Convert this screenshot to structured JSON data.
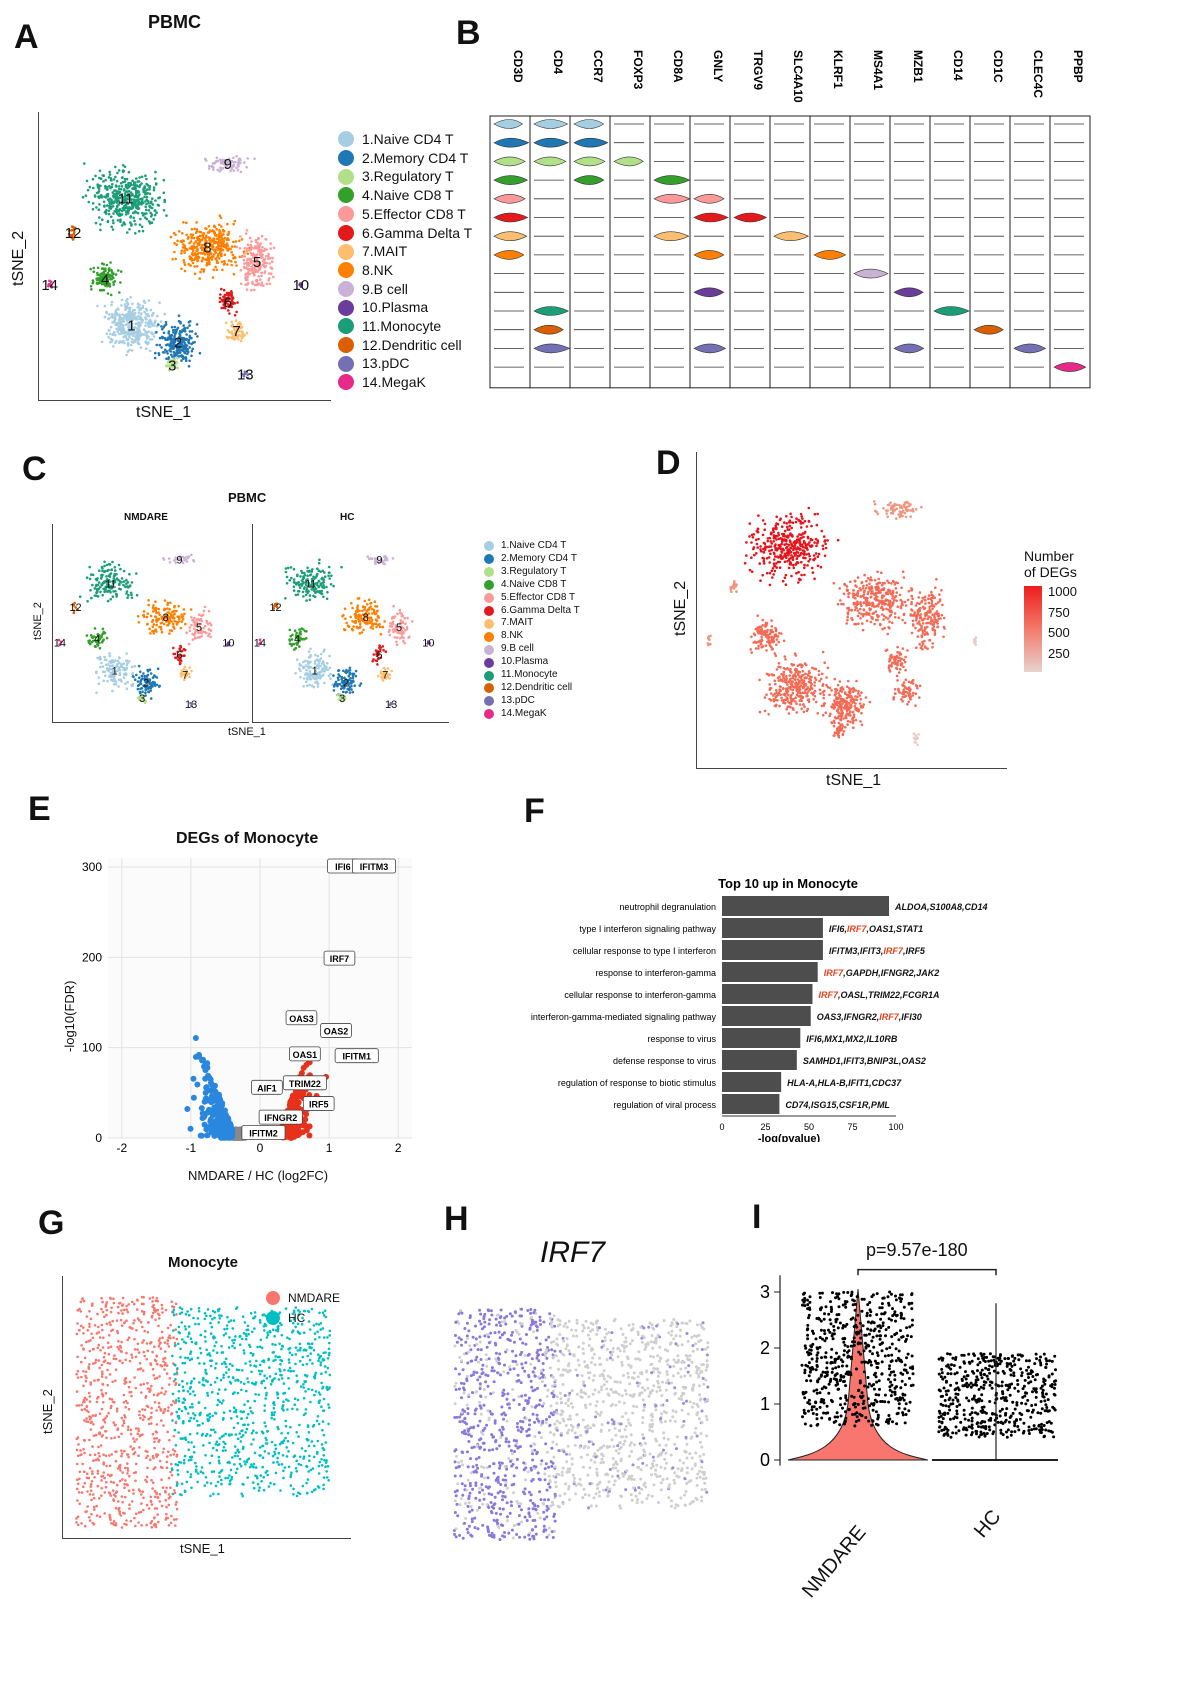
{
  "panels": {
    "a": "A",
    "b": "B",
    "c": "C",
    "d": "D",
    "e": "E",
    "f": "F",
    "g": "G",
    "h": "H",
    "i": "I"
  },
  "cell_types": [
    {
      "id": "1",
      "label": "1.Naive CD4 T",
      "color": "#a6cee3"
    },
    {
      "id": "2",
      "label": "2.Memory CD4 T",
      "color": "#1f78b4"
    },
    {
      "id": "3",
      "label": "3.Regulatory T",
      "color": "#b2df8a"
    },
    {
      "id": "4",
      "label": "4.Naive CD8 T",
      "color": "#33a02c"
    },
    {
      "id": "5",
      "label": "5.Effector CD8 T",
      "color": "#fb9a99"
    },
    {
      "id": "6",
      "label": "6.Gamma Delta T",
      "color": "#e31a1c"
    },
    {
      "id": "7",
      "label": "7.MAIT",
      "color": "#fdbf6f"
    },
    {
      "id": "8",
      "label": "8.NK",
      "color": "#ff7f00"
    },
    {
      "id": "9",
      "label": "9.B cell",
      "color": "#cab2d6"
    },
    {
      "id": "10",
      "label": "10.Plasma",
      "color": "#6a3d9a"
    },
    {
      "id": "11",
      "label": "11.Monocyte",
      "color": "#1b9e77"
    },
    {
      "id": "12",
      "label": "12.Dendritic cell",
      "color": "#d95f02"
    },
    {
      "id": "13",
      "label": "13.pDC",
      "color": "#7570b3"
    },
    {
      "id": "14",
      "label": "14.MegaK",
      "color": "#e7298a"
    }
  ],
  "panel_a": {
    "title": "PBMC",
    "xlabel": "tSNE_1",
    "ylabel": "tSNE_2"
  },
  "panel_b": {
    "genes": [
      "CD3D",
      "CD4",
      "CCR7",
      "FOXP3",
      "CD8A",
      "GNLY",
      "TRGV9",
      "SLC4A10",
      "KLRF1",
      "MS4A1",
      "MZB1",
      "CD14",
      "CD1C",
      "CLEC4C",
      "PPBP"
    ]
  },
  "panel_c": {
    "title": "PBMC",
    "left": "NMDARE",
    "right": "HC",
    "xlabel": "tSNE_1",
    "ylabel": "tSNE_2"
  },
  "panel_d": {
    "legend_title_1": "Number",
    "legend_title_2": "of DEGs",
    "ticks": [
      "1000",
      "750",
      "500",
      "250"
    ],
    "xlabel": "tSNE_1",
    "ylabel": "tSNE_2"
  },
  "panel_e": {
    "title": "DEGs of Monocyte",
    "xlabel": "NMDARE / HC (log2FC)",
    "ylabel": "-log10(FDR)",
    "xticks": [
      "-2",
      "-1",
      "0",
      "1",
      "2"
    ],
    "yticks": [
      "0",
      "100",
      "200",
      "300"
    ],
    "labels": [
      "IFI6",
      "IFITM3",
      "IRF7",
      "OAS3",
      "OAS2",
      "OAS1",
      "IFITM1",
      "AIF1",
      "TRIM22",
      "IRF5",
      "IFNGR2",
      "IFITM2"
    ]
  },
  "chart_data": {
    "type": "bar",
    "title": "Top 10 up in Monocyte",
    "xlabel": "-log(pvalue)",
    "xlim": [
      0,
      100
    ],
    "xticks": [
      "0",
      "25",
      "50",
      "75",
      "100"
    ],
    "categories": [
      "neutrophil degranulation",
      "type I interferon signaling pathway",
      "cellular response to type I interferon",
      "response to interferon-gamma",
      "cellular response to interferon-gamma",
      "interferon-gamma-mediated signaling pathway",
      "response to virus",
      "defense response to virus",
      "regulation of response to biotic stimulus",
      "regulation of viral process"
    ],
    "values": [
      96,
      58,
      58,
      55,
      52,
      51,
      45,
      43,
      34,
      33
    ],
    "genes": [
      [
        [
          "ALDOA,S100A8,CD14",
          0
        ]
      ],
      [
        [
          "IFI6,",
          0
        ],
        [
          "IRF7",
          1
        ],
        [
          ",OAS1,STAT1",
          0
        ]
      ],
      [
        [
          "IFITM3,IFIT3,",
          0
        ],
        [
          "IRF7",
          1
        ],
        [
          ",IRF5",
          0
        ]
      ],
      [
        [
          "IRF7",
          1
        ],
        [
          ",GAPDH,IFNGR2,JAK2",
          0
        ]
      ],
      [
        [
          "IRF7",
          1
        ],
        [
          ",OASL,TRIM22,FCGR1A",
          0
        ]
      ],
      [
        [
          "OAS3,IFNGR2,",
          0
        ],
        [
          "IRF7",
          1
        ],
        [
          ",IFI30",
          0
        ]
      ],
      [
        [
          "IFI6,MX1,MX2,IL10RB",
          0
        ]
      ],
      [
        [
          "SAMHD1,IFIT3,BNIP3L,OAS2",
          0
        ]
      ],
      [
        [
          "HLA-A,HLA-B,IFIT1,CDC37",
          0
        ]
      ],
      [
        [
          "CD74,ISG15,CSF1R,PML",
          0
        ]
      ]
    ]
  },
  "panel_g": {
    "title": "Monocyte",
    "xlabel": "tSNE_1",
    "ylabel": "tSNE_2",
    "legend": [
      {
        "label": "NMDARE",
        "color": "#f8766d"
      },
      {
        "label": "HC",
        "color": "#00bfc4"
      }
    ]
  },
  "panel_h": {
    "title": "IRF7"
  },
  "panel_i": {
    "pvalue": "p=9.57e-180",
    "yticks": [
      "0",
      "1",
      "2",
      "3"
    ],
    "groups": [
      "NMDARE",
      "HC"
    ]
  }
}
